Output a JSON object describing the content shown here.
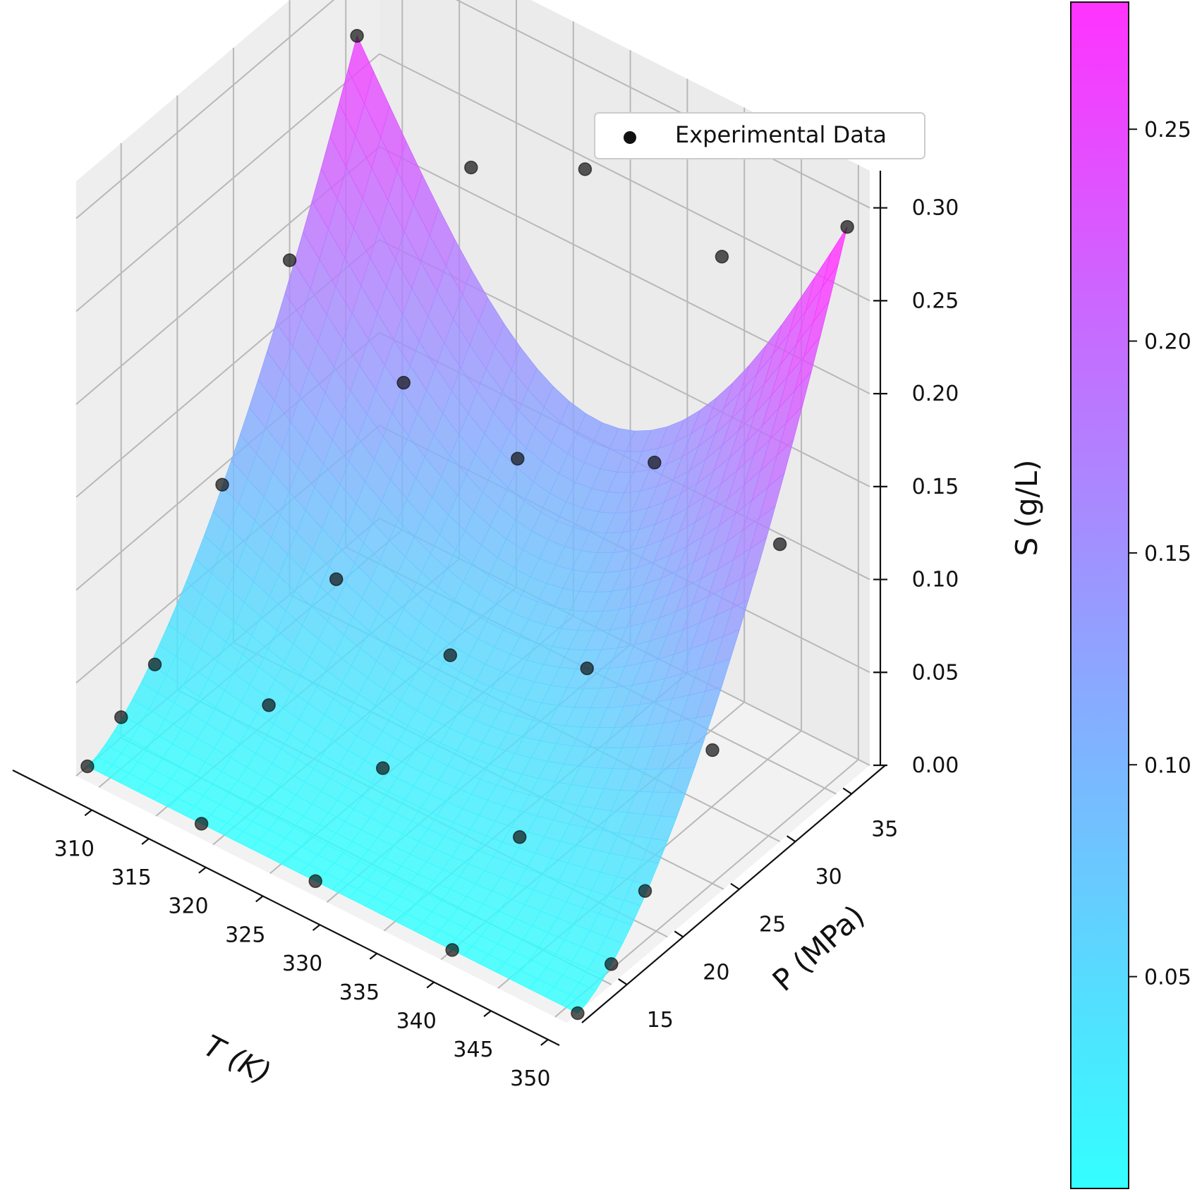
{
  "chart_data": {
    "type": "surface3d",
    "xlabel": "T (K)",
    "ylabel": "P (MPa)",
    "zlabel": "S (g/L)",
    "xlim": [
      308,
      351
    ],
    "ylim": [
      11,
      38
    ],
    "zlim": [
      0,
      0.32
    ],
    "x_ticks": [
      "310",
      "315",
      "320",
      "325",
      "330",
      "335",
      "340",
      "345",
      "350"
    ],
    "y_ticks": [
      "15",
      "20",
      "25",
      "30",
      "35"
    ],
    "z_ticks": [
      "0.00",
      "0.05",
      "0.10",
      "0.15",
      "0.20",
      "0.25",
      "0.30"
    ],
    "grid": true,
    "legend": {
      "position": "top-right",
      "entries": [
        "Experimental Data"
      ]
    },
    "colormap": "cool",
    "colorbar": {
      "range": [
        0.0,
        0.28
      ],
      "ticks": [
        "0.05",
        "0.10",
        "0.15",
        "0.20",
        "0.25"
      ]
    },
    "surface": {
      "x": [
        308,
        351
      ],
      "y": [
        12,
        36
      ],
      "z_corners": {
        "x308_y12": 0.0,
        "x351_y12": 0.0,
        "x308_y36": 0.27,
        "x351_y36": 0.3
      }
    },
    "series": [
      {
        "name": "Experimental Data",
        "points": [
          {
            "x": 308,
            "y": 12,
            "z": 0.0
          },
          {
            "x": 308,
            "y": 15,
            "z": 0.011
          },
          {
            "x": 308,
            "y": 18,
            "z": 0.024
          },
          {
            "x": 308,
            "y": 24,
            "z": 0.09
          },
          {
            "x": 308,
            "y": 30,
            "z": 0.18
          },
          {
            "x": 308,
            "y": 36,
            "z": 0.27
          },
          {
            "x": 318,
            "y": 12,
            "z": 0.0
          },
          {
            "x": 318,
            "y": 18,
            "z": 0.033
          },
          {
            "x": 318,
            "y": 24,
            "z": 0.07
          },
          {
            "x": 318,
            "y": 30,
            "z": 0.145
          },
          {
            "x": 318,
            "y": 36,
            "z": 0.23
          },
          {
            "x": 328,
            "y": 12,
            "z": 0.0
          },
          {
            "x": 328,
            "y": 18,
            "z": 0.03
          },
          {
            "x": 328,
            "y": 24,
            "z": 0.06
          },
          {
            "x": 328,
            "y": 30,
            "z": 0.135
          },
          {
            "x": 328,
            "y": 36,
            "z": 0.26
          },
          {
            "x": 340,
            "y": 12,
            "z": 0.0
          },
          {
            "x": 340,
            "y": 18,
            "z": 0.03
          },
          {
            "x": 340,
            "y": 24,
            "z": 0.09
          },
          {
            "x": 340,
            "y": 30,
            "z": 0.17
          },
          {
            "x": 340,
            "y": 36,
            "z": 0.25
          },
          {
            "x": 351,
            "y": 12,
            "z": 0.0
          },
          {
            "x": 351,
            "y": 15,
            "z": 0.011
          },
          {
            "x": 351,
            "y": 18,
            "z": 0.035
          },
          {
            "x": 351,
            "y": 24,
            "z": 0.08
          },
          {
            "x": 351,
            "y": 30,
            "z": 0.16
          },
          {
            "x": 351,
            "y": 36,
            "z": 0.3
          }
        ]
      }
    ]
  },
  "colors": {
    "cmap_low": "#00ffff",
    "cmap_high": "#ff00ff",
    "marker": "#111111",
    "pane": "#f2f2f2",
    "grid": "#b8b8b8"
  }
}
